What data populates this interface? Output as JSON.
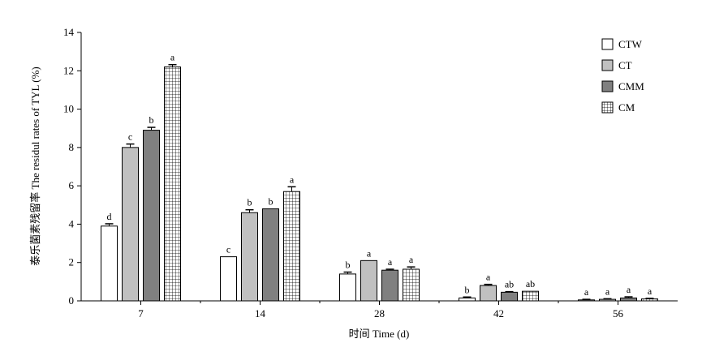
{
  "chart_data": {
    "type": "bar",
    "xlabel": "时间 Time (d)",
    "ylabel": "泰乐菌素残留率 The residul rates of TYL (%)",
    "ylim": [
      0,
      14
    ],
    "yticks": [
      0,
      2,
      4,
      6,
      8,
      10,
      12,
      14
    ],
    "categories": [
      "7",
      "14",
      "28",
      "42",
      "56"
    ],
    "grid": false,
    "legend_position": "top-right",
    "series": [
      {
        "name": "CTW",
        "color": "#ffffff",
        "pattern": "none",
        "values": [
          3.9,
          2.3,
          1.4,
          0.15,
          0.05
        ],
        "errors": [
          0.12,
          0,
          0.1,
          0.05,
          0.03
        ],
        "sig": [
          "d",
          "c",
          "b",
          "b",
          "a"
        ]
      },
      {
        "name": "CT",
        "color": "#c0c0c0",
        "pattern": "none",
        "values": [
          8.0,
          4.6,
          2.1,
          0.8,
          0.08
        ],
        "errors": [
          0.18,
          0.15,
          0,
          0.06,
          0.03
        ],
        "sig": [
          "c",
          "b",
          "a",
          "a",
          "a"
        ]
      },
      {
        "name": "CMM",
        "color": "#808080",
        "pattern": "none",
        "values": [
          8.9,
          4.8,
          1.6,
          0.45,
          0.15
        ],
        "errors": [
          0.15,
          0,
          0.05,
          0.03,
          0.06
        ],
        "sig": [
          "b",
          "b",
          "a",
          "ab",
          "a"
        ]
      },
      {
        "name": "CM",
        "color": "#ffffff",
        "pattern": "grid",
        "values": [
          12.2,
          5.7,
          1.65,
          0.5,
          0.1
        ],
        "errors": [
          0.12,
          0.25,
          0.12,
          0,
          0.03
        ],
        "sig": [
          "a",
          "a",
          "a",
          "ab",
          "a"
        ]
      }
    ]
  }
}
